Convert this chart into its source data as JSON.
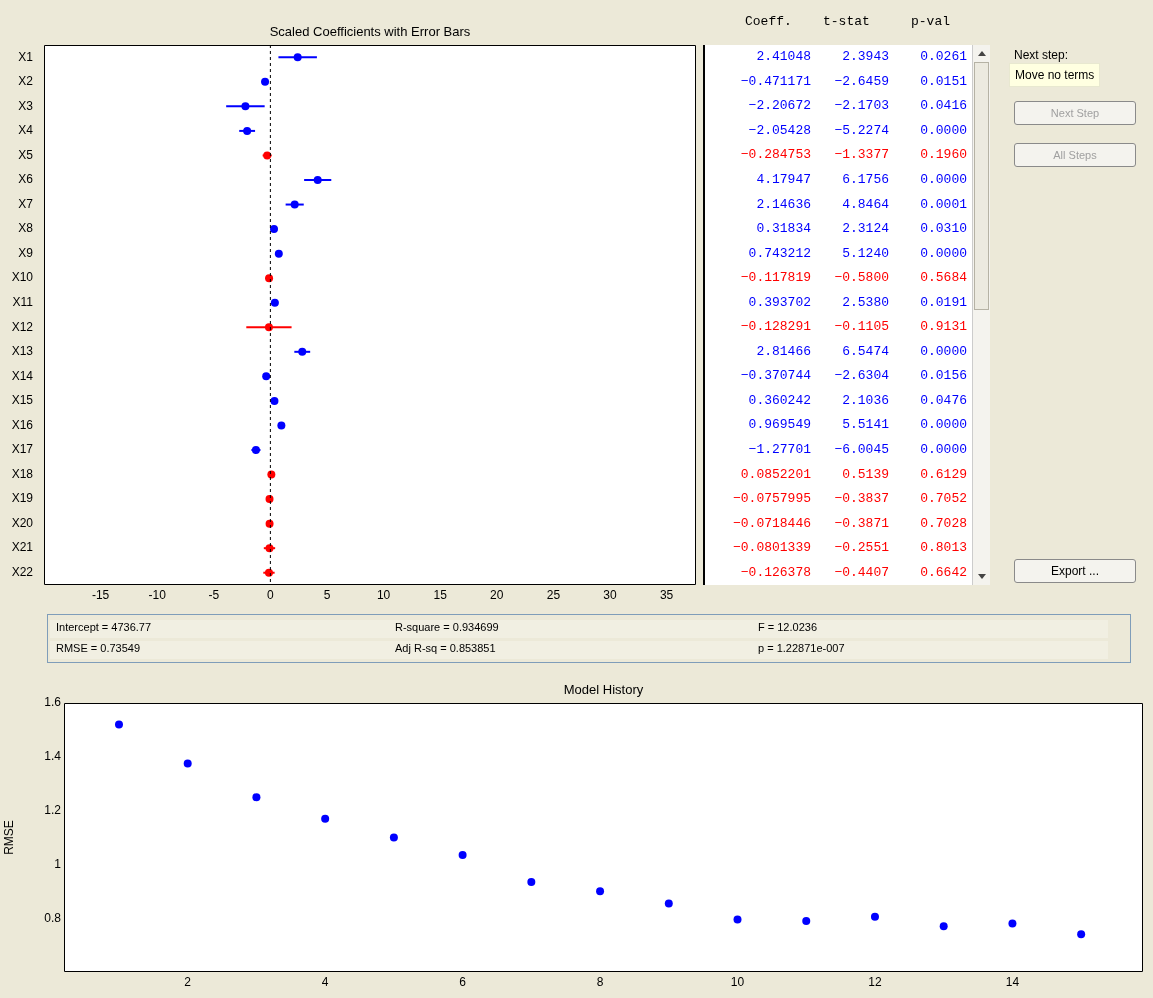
{
  "chart_data": [
    {
      "type": "scatter",
      "orientation": "horizontal",
      "title": "Scaled Coefficients with Error Bars",
      "categories": [
        "X1",
        "X2",
        "X3",
        "X4",
        "X5",
        "X6",
        "X7",
        "X8",
        "X9",
        "X10",
        "X11",
        "X12",
        "X13",
        "X14",
        "X15",
        "X16",
        "X17",
        "X18",
        "X19",
        "X20",
        "X21",
        "X22"
      ],
      "values": [
        2.41048,
        -0.471171,
        -2.20672,
        -2.05428,
        -0.284753,
        4.17947,
        2.14636,
        0.31834,
        0.743212,
        -0.117819,
        0.393702,
        -0.128291,
        2.81466,
        -0.370744,
        0.360242,
        0.969549,
        -1.27701,
        0.0852201,
        -0.0757995,
        -0.0718446,
        -0.0801339,
        -0.126378
      ],
      "errors": [
        1.7,
        0.3,
        1.7,
        0.7,
        0.4,
        1.2,
        0.8,
        0.2,
        0.2,
        0.3,
        0.3,
        2.0,
        0.7,
        0.2,
        0.3,
        0.3,
        0.4,
        0.3,
        0.3,
        0.3,
        0.5,
        0.5
      ],
      "colors": [
        "#0000ff",
        "#0000ff",
        "#0000ff",
        "#0000ff",
        "#ff0000",
        "#0000ff",
        "#0000ff",
        "#0000ff",
        "#0000ff",
        "#ff0000",
        "#0000ff",
        "#ff0000",
        "#0000ff",
        "#0000ff",
        "#0000ff",
        "#0000ff",
        "#0000ff",
        "#ff0000",
        "#ff0000",
        "#ff0000",
        "#ff0000",
        "#ff0000"
      ],
      "xlim": [
        -20,
        37.6
      ],
      "xticks": [
        -15,
        -10,
        -5,
        0,
        5,
        10,
        15,
        20,
        25,
        30,
        35
      ],
      "ref_lines": [
        {
          "axis": "x",
          "value": 0,
          "line_style": "dashed"
        }
      ],
      "marker": "circle",
      "grid": false
    },
    {
      "type": "other",
      "annotations": [
        "Coeff.",
        "t-stat",
        "p-val",
        "2.41048",
        "2.3943",
        "0.0261",
        "−0.471171",
        "−2.6459",
        "0.0151",
        "−2.20672",
        "−2.1703",
        "0.0416",
        "−2.05428",
        "−5.2274",
        "0.0000",
        "−0.284753",
        "−1.3377",
        "0.1960",
        "4.17947",
        "6.1756",
        "0.0000",
        "2.14636",
        "4.8464",
        "0.0001",
        "0.31834",
        "2.3124",
        "0.0310",
        "0.743212",
        "5.1240",
        "0.0000",
        "−0.117819",
        "−0.5800",
        "0.5684",
        "0.393702",
        "2.5380",
        "0.0191",
        "−0.128291",
        "−0.1105",
        "0.9131",
        "2.81466",
        "6.5474",
        "0.0000",
        "−0.370744",
        "−2.6304",
        "0.0156",
        "0.360242",
        "2.1036",
        "0.0476",
        "0.969549",
        "5.5141",
        "0.0000",
        "−1.27701",
        "−6.0045",
        "0.0000",
        "0.0852201",
        "0.5139",
        "0.6129",
        "−0.0757995",
        "−0.3837",
        "0.7052",
        "−0.0718446",
        "−0.3871",
        "0.7028",
        "−0.0801339",
        "−0.2551",
        "0.8013",
        "−0.126378",
        "−0.4407",
        "0.6642"
      ]
    },
    {
      "type": "other",
      "annotations": [
        "Next step:",
        "Move no terms",
        "Next Step",
        "All Steps",
        "Export ..."
      ]
    },
    {
      "type": "other",
      "annotations": [
        "Intercept = 4736.77",
        "R-square = 0.934699",
        "F = 12.0236",
        "RMSE = 0.73549",
        "Adj R-sq = 0.853851",
        "p = 1.22871e-007"
      ]
    },
    {
      "type": "scatter",
      "title": "Model History",
      "ylabel": "RMSE",
      "x": [
        1,
        2,
        3,
        4,
        5,
        6,
        7,
        8,
        9,
        10,
        11,
        12,
        13,
        14,
        15
      ],
      "values": [
        1.52,
        1.375,
        1.25,
        1.17,
        1.1,
        1.035,
        0.935,
        0.9,
        0.855,
        0.795,
        0.79,
        0.805,
        0.77,
        0.78,
        0.74
      ],
      "color": "#0000ff",
      "xlim": [
        0.2,
        15.9
      ],
      "xticks": [
        2,
        4,
        6,
        8,
        10,
        12,
        14
      ],
      "ylim": [
        0.6,
        1.6
      ],
      "yticks": [
        0.8,
        1,
        1.2,
        1.4,
        1.6
      ],
      "marker": "circle",
      "grid": false
    }
  ]
}
